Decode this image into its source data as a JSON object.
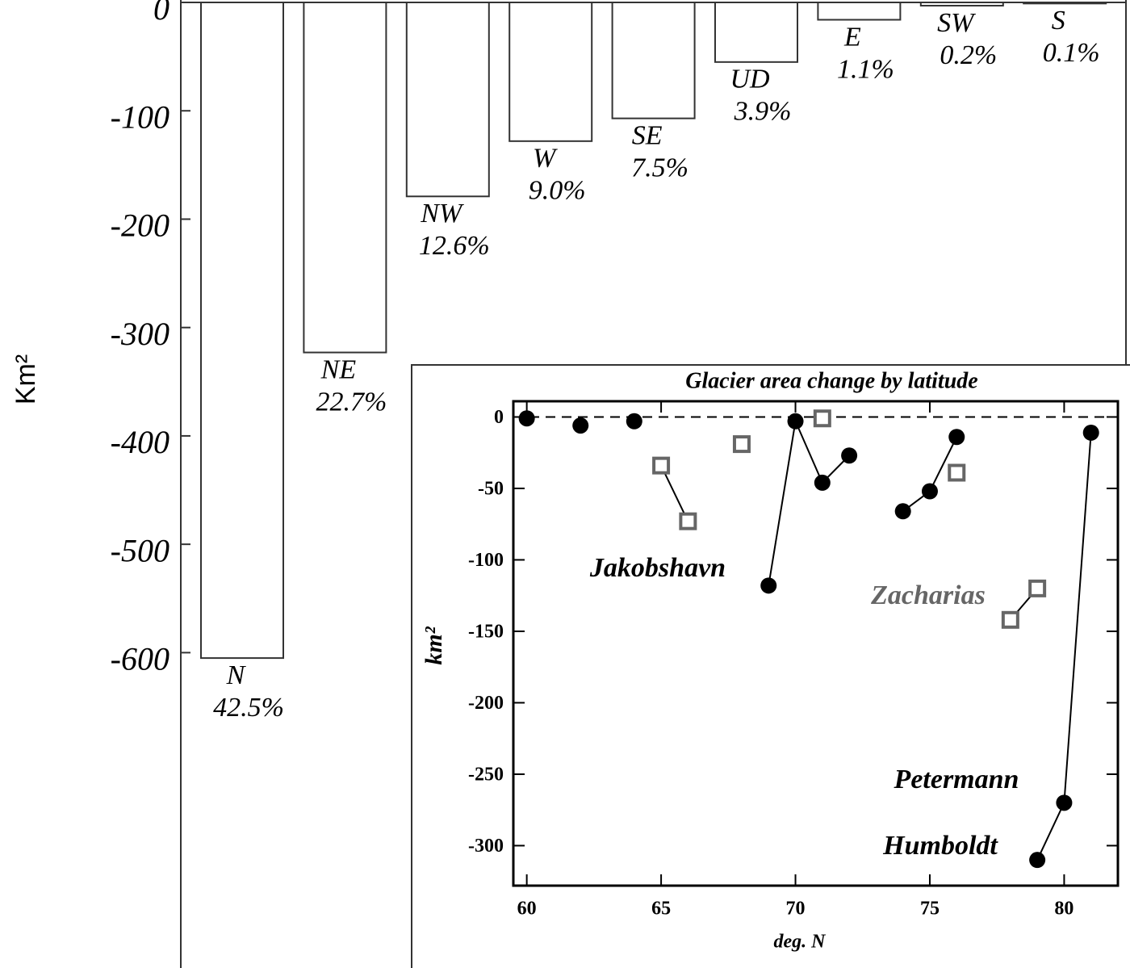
{
  "chart_data": [
    {
      "type": "bar",
      "y_label": "Km²",
      "categories": [
        "N",
        "NE",
        "NW",
        "W",
        "SE",
        "UD",
        "E",
        "SW",
        "S"
      ],
      "values": [
        -605,
        -323,
        -179,
        -128,
        -107,
        -55,
        -16,
        -3,
        -1
      ],
      "percent_labels": [
        "42.5%",
        "22.7%",
        "12.6%",
        "9.0%",
        "7.5%",
        "3.9%",
        "1.1%",
        "0.2%",
        "0.1%"
      ],
      "color": "#ffffff",
      "ylim": [
        -891,
        0
      ],
      "yticks": [
        0,
        -100,
        -200,
        -300,
        -400,
        -500,
        -600
      ]
    },
    {
      "type": "scatter",
      "title": "Glacier area change by latitude",
      "x_label": "deg. N",
      "y_label": "km²",
      "xlim": [
        59.5,
        82
      ],
      "ylim": [
        -328,
        11
      ],
      "xticks": [
        60,
        65,
        70,
        75,
        80
      ],
      "yticks": [
        0,
        -50,
        -100,
        -150,
        -200,
        -250,
        -300
      ],
      "series": [
        {
          "marker": "circle",
          "color": "#000000",
          "connected": false,
          "x": [
            60,
            62,
            64
          ],
          "values": [
            -1,
            -6,
            -3
          ]
        },
        {
          "marker": "circle",
          "color": "#000000",
          "connected": true,
          "x": [
            69,
            70,
            71,
            72
          ],
          "values": [
            -118,
            -3,
            -46,
            -27
          ]
        },
        {
          "marker": "circle",
          "color": "#000000",
          "connected": true,
          "x": [
            74,
            75,
            76
          ],
          "values": [
            -66,
            -52,
            -14
          ]
        },
        {
          "marker": "circle",
          "color": "#000000",
          "connected": true,
          "x": [
            79,
            80,
            81
          ],
          "values": [
            -310,
            -270,
            -11
          ]
        },
        {
          "marker": "square",
          "color": "#666666",
          "connected": true,
          "x": [
            65,
            66
          ],
          "values": [
            -34,
            -73
          ]
        },
        {
          "marker": "square",
          "color": "#666666",
          "connected": false,
          "x": [
            68,
            71,
            76
          ],
          "values": [
            -19,
            -1,
            -39
          ]
        },
        {
          "marker": "square",
          "color": "#666666",
          "connected": true,
          "x": [
            78,
            79
          ],
          "values": [
            -142,
            -120
          ]
        }
      ],
      "annotations": [
        {
          "text": "Jakobshavn",
          "color": "#000000"
        },
        {
          "text": "Zacharias",
          "color": "#666666"
        },
        {
          "text": "Petermann",
          "color": "#000000"
        },
        {
          "text": "Humboldt",
          "color": "#000000"
        }
      ]
    }
  ]
}
